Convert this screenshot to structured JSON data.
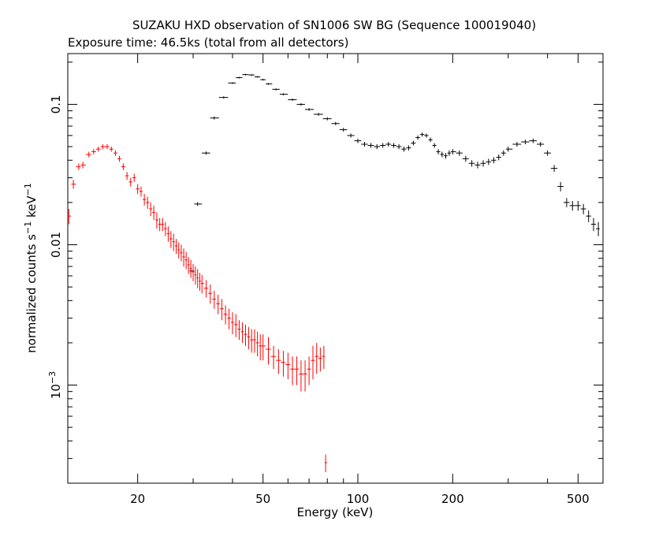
{
  "chart_data": {
    "type": "scatter",
    "title": "SUZAKU HXD observation of SN1006 SW BG (Sequence 100019040)",
    "subtitle": "Exposure time: 46.5ks (total from all detectors)",
    "xlabel": "Energy (keV)",
    "ylabel": "normalized counts s",
    "ylabel_sup1": "−1",
    "ylabel_mid": " keV",
    "ylabel_sup2": "−1",
    "x_scale": "log",
    "y_scale": "log",
    "xlim": [
      12,
      600
    ],
    "ylim": [
      0.0002,
      0.23
    ],
    "x_ticks": [
      {
        "value": 20,
        "label": "20"
      },
      {
        "value": 50,
        "label": "50"
      },
      {
        "value": 100,
        "label": "100"
      },
      {
        "value": 200,
        "label": "200"
      },
      {
        "value": 500,
        "label": "500"
      }
    ],
    "y_ticks": [
      {
        "value": 0.1,
        "label": "0.1"
      },
      {
        "value": 0.01,
        "label": "0.01"
      },
      {
        "value": 0.001,
        "label": "10",
        "sup": "−3"
      }
    ],
    "grid": false,
    "legend": "none",
    "series": [
      {
        "color": "#000000",
        "points": [
          [
            29.5,
            0.0065,
            0.0003
          ],
          [
            31,
            0.0195,
            0.0006
          ],
          [
            33,
            0.045,
            0.0012
          ],
          [
            35,
            0.08,
            0.002
          ],
          [
            37.5,
            0.112,
            0.002
          ],
          [
            40,
            0.142,
            0.002
          ],
          [
            42,
            0.155,
            0.002
          ],
          [
            44,
            0.163,
            0.002
          ],
          [
            46,
            0.162,
            0.002
          ],
          [
            48,
            0.157,
            0.002
          ],
          [
            50,
            0.15,
            0.002
          ],
          [
            52,
            0.14,
            0.002
          ],
          [
            55,
            0.128,
            0.002
          ],
          [
            58,
            0.118,
            0.002
          ],
          [
            62,
            0.108,
            0.002
          ],
          [
            66,
            0.1,
            0.002
          ],
          [
            70,
            0.092,
            0.002
          ],
          [
            75,
            0.085,
            0.002
          ],
          [
            80,
            0.079,
            0.002
          ],
          [
            85,
            0.073,
            0.002
          ],
          [
            90,
            0.066,
            0.002
          ],
          [
            95,
            0.06,
            0.002
          ],
          [
            100,
            0.055,
            0.002
          ],
          [
            105,
            0.052,
            0.002
          ],
          [
            110,
            0.051,
            0.002
          ],
          [
            115,
            0.05,
            0.002
          ],
          [
            120,
            0.051,
            0.002
          ],
          [
            125,
            0.052,
            0.002
          ],
          [
            130,
            0.051,
            0.002
          ],
          [
            135,
            0.05,
            0.002
          ],
          [
            140,
            0.048,
            0.002
          ],
          [
            145,
            0.049,
            0.002
          ],
          [
            150,
            0.053,
            0.002
          ],
          [
            155,
            0.058,
            0.002
          ],
          [
            160,
            0.061,
            0.002
          ],
          [
            165,
            0.06,
            0.002
          ],
          [
            170,
            0.056,
            0.002
          ],
          [
            175,
            0.051,
            0.002
          ],
          [
            180,
            0.046,
            0.002
          ],
          [
            185,
            0.044,
            0.002
          ],
          [
            190,
            0.043,
            0.002
          ],
          [
            195,
            0.045,
            0.002
          ],
          [
            200,
            0.046,
            0.002
          ],
          [
            210,
            0.045,
            0.002
          ],
          [
            220,
            0.041,
            0.002
          ],
          [
            230,
            0.038,
            0.002
          ],
          [
            240,
            0.037,
            0.002
          ],
          [
            250,
            0.038,
            0.002
          ],
          [
            260,
            0.039,
            0.002
          ],
          [
            270,
            0.04,
            0.002
          ],
          [
            280,
            0.042,
            0.002
          ],
          [
            290,
            0.045,
            0.002
          ],
          [
            300,
            0.048,
            0.002
          ],
          [
            320,
            0.052,
            0.002
          ],
          [
            340,
            0.054,
            0.002
          ],
          [
            360,
            0.055,
            0.002
          ],
          [
            380,
            0.052,
            0.002
          ],
          [
            400,
            0.045,
            0.002
          ],
          [
            420,
            0.035,
            0.002
          ],
          [
            440,
            0.026,
            0.002
          ],
          [
            460,
            0.02,
            0.0015
          ],
          [
            480,
            0.019,
            0.0015
          ],
          [
            500,
            0.019,
            0.0015
          ],
          [
            520,
            0.018,
            0.0015
          ],
          [
            540,
            0.016,
            0.0015
          ],
          [
            560,
            0.014,
            0.0015
          ],
          [
            580,
            0.013,
            0.0015
          ]
        ]
      },
      {
        "color": "#ff0000",
        "points": [
          [
            12.1,
            0.016,
            0.002
          ],
          [
            12.5,
            0.027,
            0.002
          ],
          [
            13,
            0.036,
            0.002
          ],
          [
            13.4,
            0.037,
            0.002
          ],
          [
            14,
            0.044,
            0.002
          ],
          [
            14.5,
            0.046,
            0.002
          ],
          [
            15,
            0.048,
            0.002
          ],
          [
            15.5,
            0.05,
            0.002
          ],
          [
            16,
            0.05,
            0.002
          ],
          [
            16.5,
            0.048,
            0.002
          ],
          [
            17,
            0.045,
            0.002
          ],
          [
            17.5,
            0.041,
            0.002
          ],
          [
            18,
            0.036,
            0.002
          ],
          [
            18.5,
            0.031,
            0.002
          ],
          [
            19,
            0.028,
            0.002
          ],
          [
            19.5,
            0.03,
            0.002
          ],
          [
            20,
            0.025,
            0.002
          ],
          [
            20.5,
            0.024,
            0.002
          ],
          [
            21,
            0.021,
            0.002
          ],
          [
            21.5,
            0.02,
            0.002
          ],
          [
            22,
            0.018,
            0.002
          ],
          [
            22.5,
            0.017,
            0.002
          ],
          [
            23,
            0.015,
            0.002
          ],
          [
            23.5,
            0.014,
            0.0015
          ],
          [
            24,
            0.014,
            0.0015
          ],
          [
            24.5,
            0.013,
            0.0015
          ],
          [
            25,
            0.012,
            0.0015
          ],
          [
            25.5,
            0.011,
            0.0015
          ],
          [
            26,
            0.0105,
            0.0015
          ],
          [
            26.5,
            0.0098,
            0.0012
          ],
          [
            27,
            0.0092,
            0.0012
          ],
          [
            27.5,
            0.0088,
            0.0012
          ],
          [
            28,
            0.0082,
            0.0012
          ],
          [
            28.5,
            0.0078,
            0.0011
          ],
          [
            29,
            0.0072,
            0.001
          ],
          [
            29.5,
            0.0068,
            0.001
          ],
          [
            30,
            0.0064,
            0.0009
          ],
          [
            30.5,
            0.0061,
            0.0009
          ],
          [
            31,
            0.0058,
            0.0009
          ],
          [
            31.5,
            0.0055,
            0.0008
          ],
          [
            32,
            0.0053,
            0.0008
          ],
          [
            33,
            0.0049,
            0.0007
          ],
          [
            34,
            0.0045,
            0.0007
          ],
          [
            35,
            0.0041,
            0.0006
          ],
          [
            36,
            0.0038,
            0.0006
          ],
          [
            37,
            0.0035,
            0.0006
          ],
          [
            38,
            0.0032,
            0.0005
          ],
          [
            39,
            0.003,
            0.0005
          ],
          [
            40,
            0.0028,
            0.0005
          ],
          [
            41,
            0.0027,
            0.0005
          ],
          [
            42,
            0.0025,
            0.0004
          ],
          [
            43,
            0.0024,
            0.0004
          ],
          [
            44,
            0.0023,
            0.0004
          ],
          [
            45,
            0.0022,
            0.0004
          ],
          [
            46,
            0.0021,
            0.0004
          ],
          [
            47,
            0.0021,
            0.0004
          ],
          [
            48,
            0.002,
            0.0004
          ],
          [
            49,
            0.0019,
            0.0004
          ],
          [
            50,
            0.0019,
            0.0004
          ],
          [
            52,
            0.0018,
            0.0004
          ],
          [
            54,
            0.0016,
            0.0003
          ],
          [
            56,
            0.0015,
            0.0003
          ],
          [
            58,
            0.00145,
            0.0003
          ],
          [
            60,
            0.0014,
            0.0003
          ],
          [
            62,
            0.0013,
            0.0003
          ],
          [
            64,
            0.0013,
            0.0003
          ],
          [
            66,
            0.0012,
            0.0003
          ],
          [
            68,
            0.0012,
            0.0003
          ],
          [
            70,
            0.0013,
            0.0003
          ],
          [
            72,
            0.0015,
            0.0004
          ],
          [
            74,
            0.0016,
            0.0004
          ],
          [
            76,
            0.00155,
            0.0003
          ],
          [
            78,
            0.0016,
            0.0003
          ],
          [
            79,
            0.00028,
            4e-05
          ]
        ]
      }
    ]
  }
}
